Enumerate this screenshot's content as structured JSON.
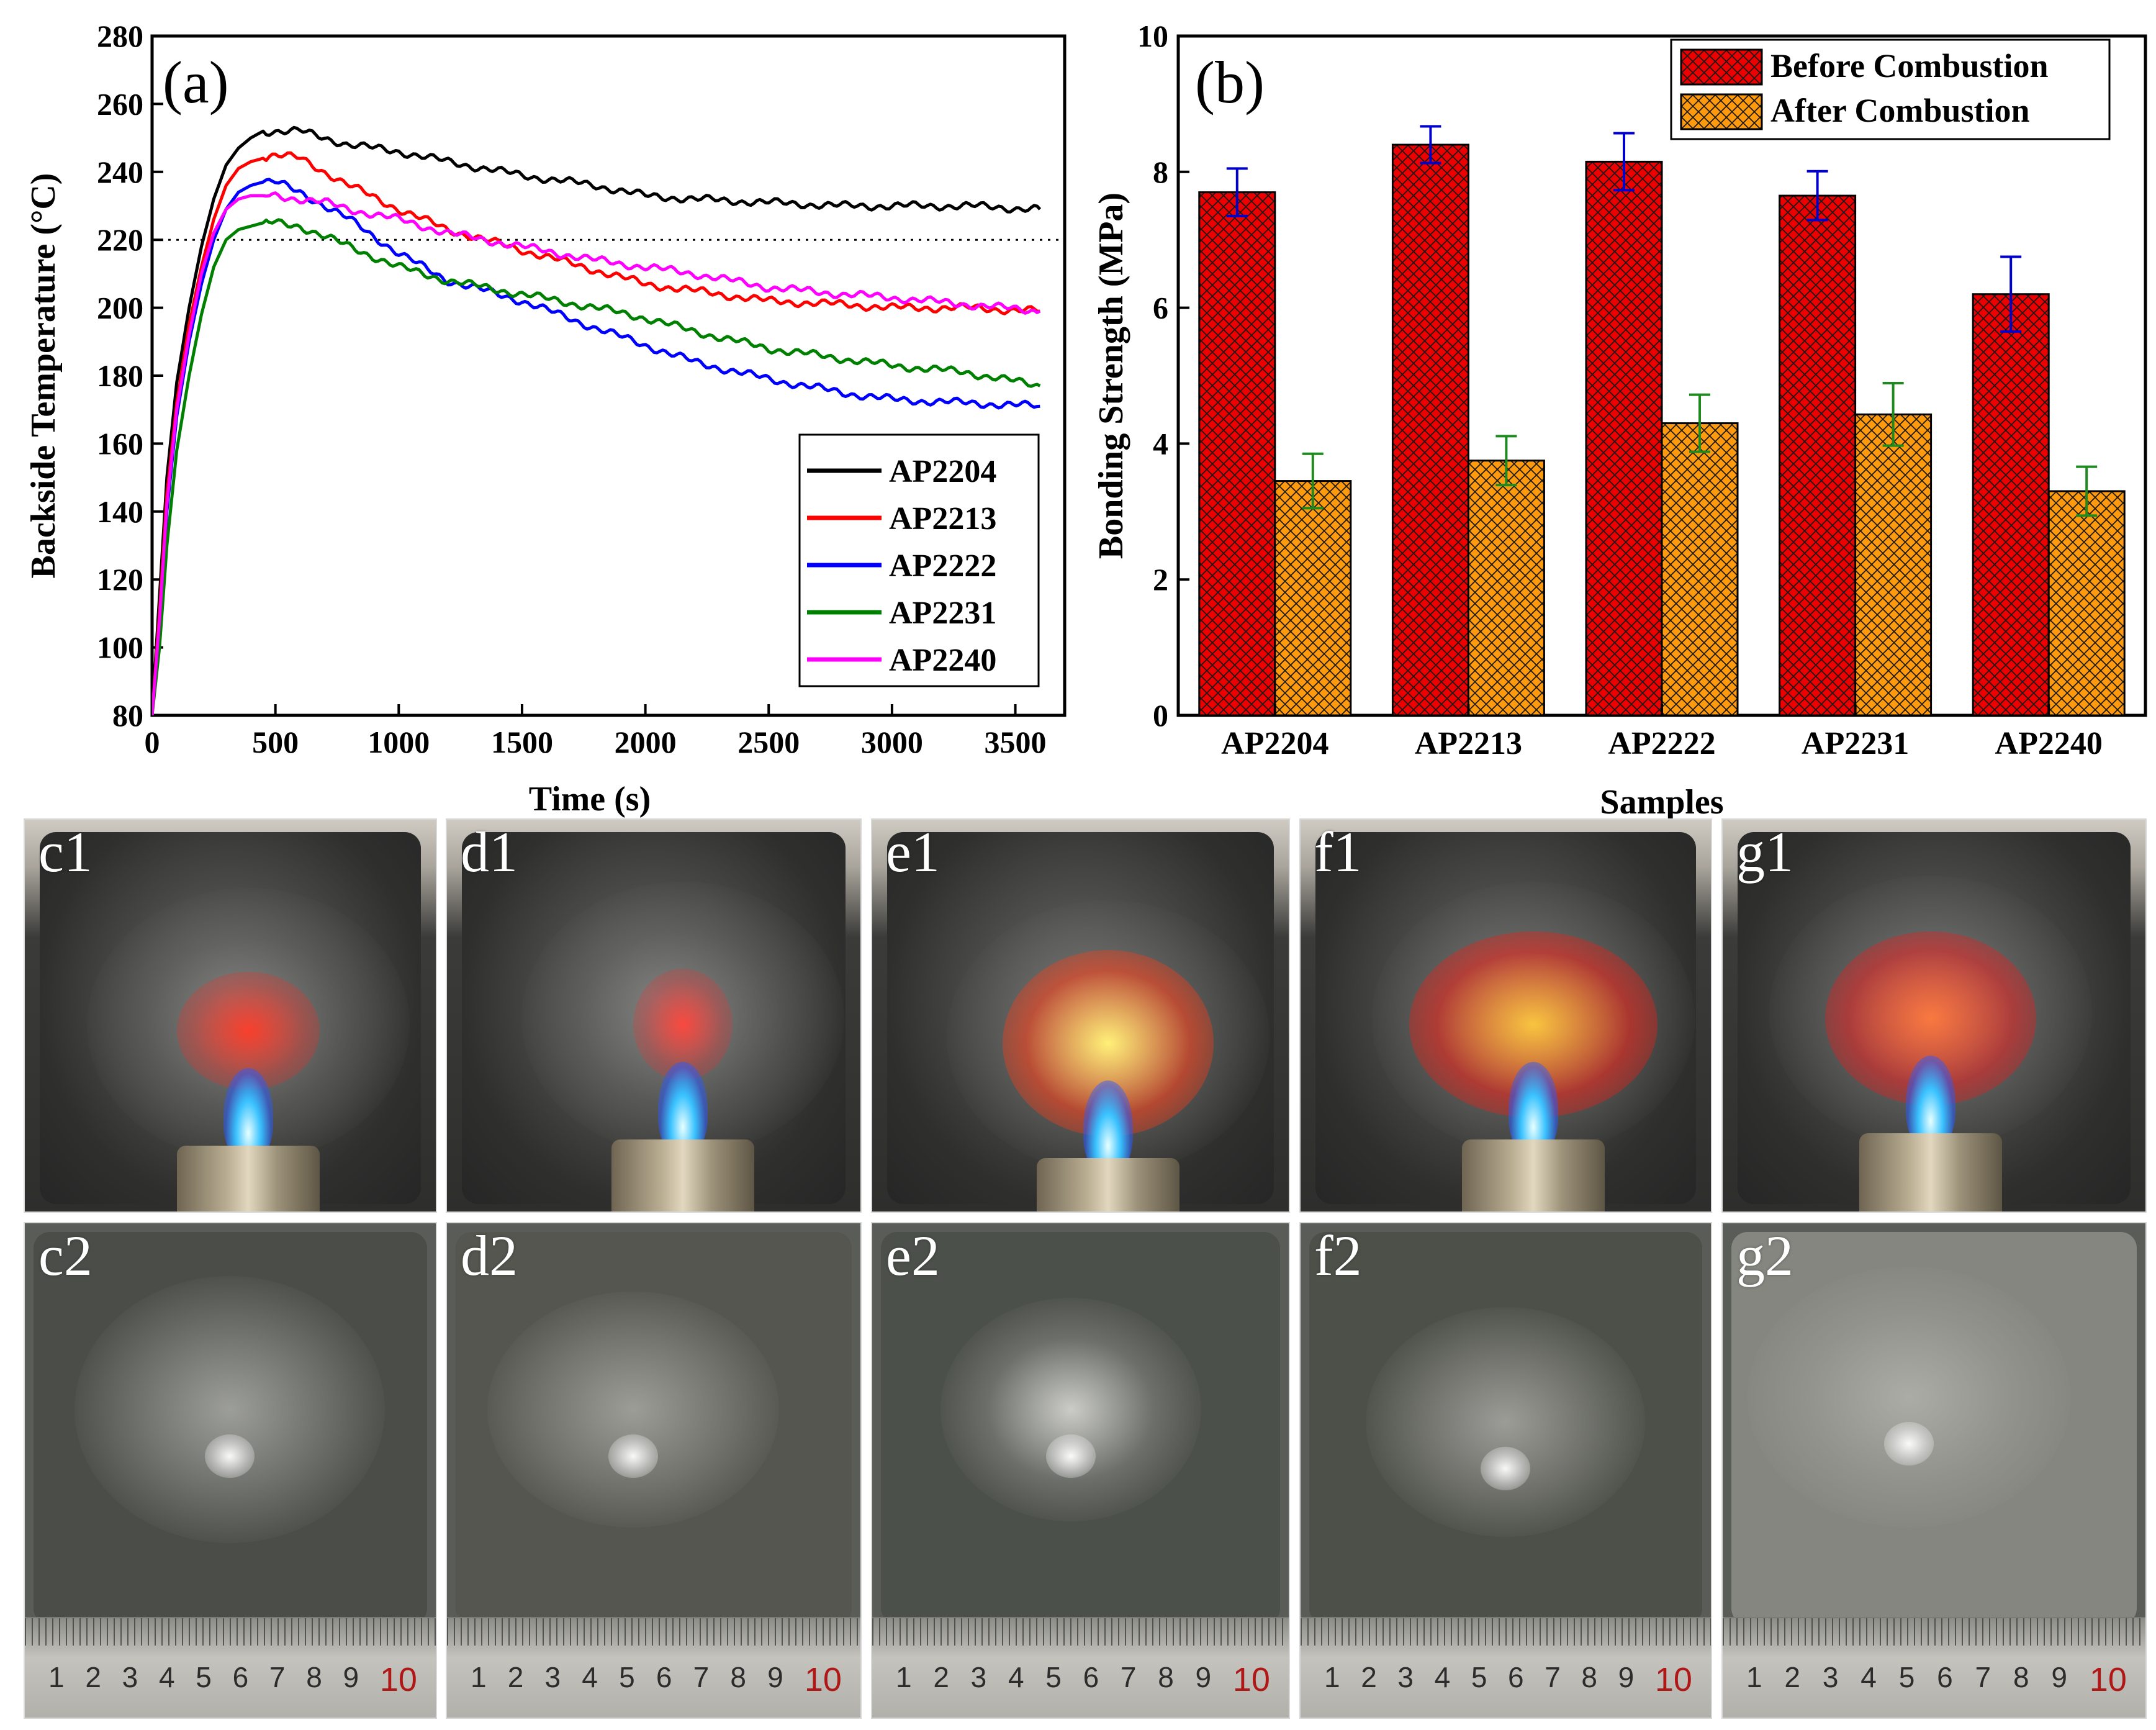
{
  "chart_data": [
    {
      "panel_label": "(a)",
      "type": "line",
      "title": "",
      "xlabel": "Time (s)",
      "ylabel": "Backside Temperature (°C)",
      "xlim": [
        0,
        3700
      ],
      "ylim": [
        80,
        280
      ],
      "xticks": [
        0,
        500,
        1000,
        1500,
        2000,
        2500,
        3000,
        3500
      ],
      "yticks": [
        80,
        100,
        120,
        140,
        160,
        180,
        200,
        220,
        240,
        260,
        280
      ],
      "reference_line": {
        "y": 220,
        "style": "dotted"
      },
      "legend_position": "bottom-right",
      "series": [
        {
          "name": "AP2204",
          "color": "#000000",
          "x": [
            0,
            30,
            60,
            100,
            150,
            200,
            250,
            300,
            350,
            400,
            450,
            500,
            600,
            700,
            800,
            1000,
            1200,
            1500,
            1800,
            2000,
            2200,
            2500,
            2800,
            3000,
            3300,
            3600
          ],
          "y": [
            80,
            115,
            150,
            178,
            200,
            218,
            232,
            242,
            247,
            250,
            252,
            252,
            252,
            250,
            248,
            246,
            243,
            239,
            236,
            233,
            232,
            231,
            230,
            230,
            230,
            229
          ]
        },
        {
          "name": "AP2213",
          "color": "#ff0000",
          "x": [
            0,
            30,
            60,
            100,
            150,
            200,
            250,
            300,
            350,
            400,
            450,
            500,
            600,
            700,
            800,
            1000,
            1200,
            1500,
            1800,
            2000,
            2200,
            2500,
            2800,
            3000,
            3300,
            3600
          ],
          "y": [
            80,
            110,
            145,
            172,
            195,
            212,
            226,
            236,
            241,
            243,
            244,
            245,
            244,
            240,
            236,
            229,
            223,
            217,
            211,
            207,
            205,
            202,
            201,
            200,
            200,
            199
          ]
        },
        {
          "name": "AP2222",
          "color": "#0000ff",
          "x": [
            0,
            30,
            60,
            100,
            150,
            200,
            250,
            300,
            350,
            400,
            450,
            500,
            600,
            700,
            800,
            1000,
            1200,
            1500,
            1800,
            2000,
            2200,
            2500,
            2800,
            3000,
            3300,
            3600
          ],
          "y": [
            80,
            105,
            140,
            168,
            190,
            207,
            220,
            229,
            234,
            236,
            237,
            237,
            234,
            230,
            226,
            216,
            208,
            202,
            194,
            189,
            184,
            179,
            175,
            173,
            172,
            171
          ]
        },
        {
          "name": "AP2231",
          "color": "#008000",
          "x": [
            0,
            30,
            60,
            100,
            150,
            200,
            250,
            300,
            350,
            400,
            450,
            500,
            600,
            700,
            800,
            1000,
            1200,
            1500,
            1800,
            2000,
            2200,
            2500,
            2800,
            3000,
            3300,
            3600
          ],
          "y": [
            80,
            100,
            130,
            158,
            180,
            198,
            212,
            220,
            223,
            224,
            225,
            225,
            224,
            221,
            218,
            212,
            208,
            204,
            200,
            197,
            193,
            188,
            185,
            183,
            181,
            177
          ]
        },
        {
          "name": "AP2240",
          "color": "#ff00ff",
          "x": [
            0,
            30,
            60,
            100,
            150,
            200,
            250,
            300,
            350,
            400,
            450,
            500,
            600,
            700,
            800,
            1000,
            1200,
            1500,
            1800,
            2000,
            2200,
            2500,
            2800,
            3000,
            3300,
            3600
          ],
          "y": [
            80,
            108,
            142,
            170,
            192,
            210,
            222,
            229,
            232,
            233,
            233,
            233,
            232,
            231,
            229,
            226,
            222,
            218,
            214,
            212,
            210,
            206,
            204,
            203,
            201,
            199
          ]
        }
      ]
    },
    {
      "panel_label": "(b)",
      "type": "bar",
      "title": "",
      "xlabel": "Samples",
      "ylabel": "Bonding Strength (MPa)",
      "ylim": [
        0,
        10
      ],
      "yticks": [
        0,
        2,
        4,
        6,
        8,
        10
      ],
      "categories": [
        "AP2204",
        "AP2213",
        "AP2222",
        "AP2231",
        "AP2240"
      ],
      "legend_position": "top-right",
      "series": [
        {
          "name": "Before Combustion",
          "color": "#ee0000",
          "errorbar_color": "#0000cc",
          "values": [
            7.7,
            8.4,
            8.15,
            7.65,
            6.2
          ],
          "errors": [
            0.35,
            0.27,
            0.42,
            0.36,
            0.55
          ]
        },
        {
          "name": "After Combustion",
          "color": "#ff9a0e",
          "errorbar_color": "#1f8a1f",
          "values": [
            3.45,
            3.75,
            4.3,
            4.43,
            3.3
          ],
          "errors": [
            0.4,
            0.36,
            0.42,
            0.46,
            0.36
          ]
        }
      ]
    }
  ],
  "photos": {
    "row1": [
      {
        "label": "c1"
      },
      {
        "label": "d1"
      },
      {
        "label": "e1"
      },
      {
        "label": "f1"
      },
      {
        "label": "g1"
      }
    ],
    "row2": [
      {
        "label": "c2"
      },
      {
        "label": "d2"
      },
      {
        "label": "e2"
      },
      {
        "label": "f2"
      },
      {
        "label": "g2"
      }
    ],
    "ruler_numbers": [
      "1",
      "2",
      "3",
      "4",
      "5",
      "6",
      "7",
      "8",
      "9",
      "10"
    ]
  },
  "colors": {
    "axis": "#000000",
    "crosshatch": "#1a1a1a"
  }
}
